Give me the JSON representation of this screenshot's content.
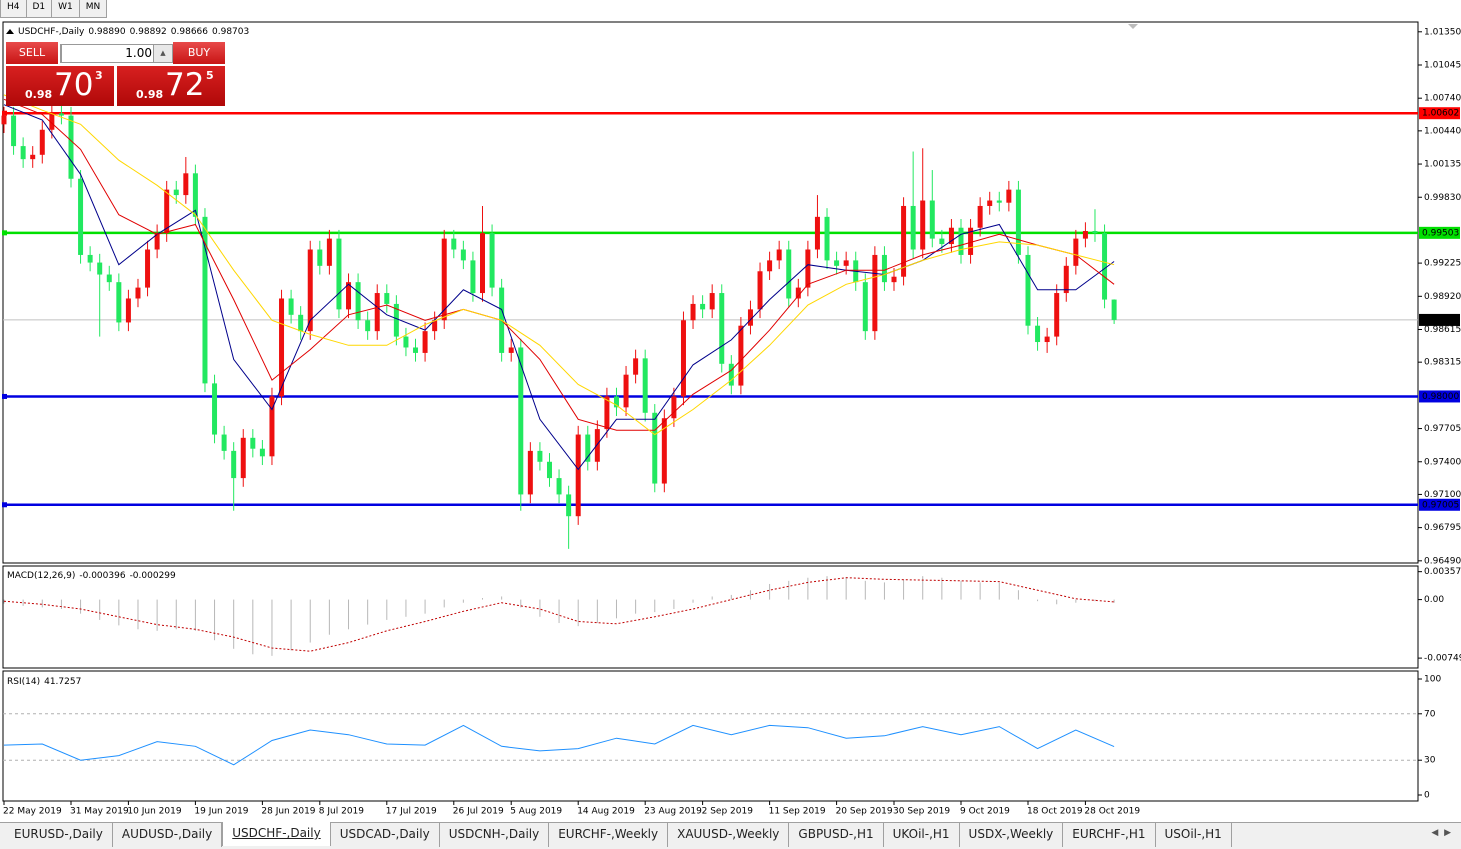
{
  "toolbar": {
    "periods": [
      "H4",
      "D1",
      "W1",
      "MN"
    ]
  },
  "trade_panel": {
    "sell": "SELL",
    "buy": "BUY",
    "lot": "1.00",
    "bid": {
      "big_figure": "0.98",
      "pips": "70",
      "point": "3"
    },
    "ask": {
      "big_figure": "0.98",
      "pips": "72",
      "point": "5"
    }
  },
  "chart_data": [
    {
      "type": "candlestick",
      "title": "USDCHF-,Daily",
      "header_labels": [
        "0.98890",
        "0.98892",
        "0.98666",
        "0.98703"
      ],
      "categories": [
        "22 May 2019",
        null,
        null,
        null,
        null,
        null,
        null,
        "31 May 2019",
        null,
        null,
        null,
        null,
        null,
        "10 Jun 2019",
        null,
        null,
        null,
        null,
        null,
        null,
        "19 Jun 2019",
        null,
        null,
        null,
        null,
        null,
        null,
        "28 Jun 2019",
        null,
        null,
        null,
        null,
        null,
        "8 Jul 2019",
        null,
        null,
        null,
        null,
        null,
        null,
        "17 Jul 2019",
        null,
        null,
        null,
        null,
        null,
        null,
        "26 Jul 2019",
        null,
        null,
        null,
        null,
        null,
        "5 Aug 2019",
        null,
        null,
        null,
        null,
        null,
        null,
        "14 Aug 2019",
        null,
        null,
        null,
        null,
        null,
        null,
        "23 Aug 2019",
        null,
        null,
        null,
        null,
        null,
        "2 Sep 2019",
        null,
        null,
        null,
        null,
        null,
        null,
        "11 Sep 2019",
        null,
        null,
        null,
        null,
        null,
        null,
        "20 Sep 2019",
        null,
        null,
        null,
        null,
        null,
        "30 Sep 2019",
        null,
        null,
        null,
        null,
        null,
        null,
        "9 Oct 2019",
        null,
        null,
        null,
        null,
        null,
        null,
        "18 Oct 2019",
        null,
        null,
        null,
        null,
        null,
        "28 Oct 2019",
        null,
        null,
        null
      ],
      "open": [
        1.005,
        1.0058,
        1.003,
        1.0018,
        1.0022,
        1.0045,
        1.006,
        1.0058,
        1.0,
        0.993,
        0.9923,
        0.9912,
        0.9905,
        0.9868,
        0.989,
        0.99,
        0.9935,
        0.995,
        0.999,
        0.9985,
        1.0005,
        0.9965,
        0.9812,
        0.9765,
        0.975,
        0.9725,
        0.9762,
        0.9752,
        0.9745,
        0.98,
        0.989,
        0.9875,
        0.986,
        0.9935,
        0.992,
        0.9945,
        0.988,
        0.9905,
        0.987,
        0.986,
        0.9895,
        0.9885,
        0.9855,
        0.9845,
        0.984,
        0.986,
        0.987,
        0.9945,
        0.9935,
        0.9925,
        0.9895,
        0.995,
        0.99,
        0.984,
        0.9845,
        0.971,
        0.975,
        0.974,
        0.9725,
        0.971,
        0.969,
        0.9765,
        0.974,
        0.977,
        0.98,
        0.979,
        0.982,
        0.9835,
        0.9785,
        0.972,
        0.978,
        0.98,
        0.987,
        0.9885,
        0.988,
        0.9895,
        0.983,
        0.981,
        0.9865,
        0.988,
        0.9915,
        0.9925,
        0.9935,
        0.989,
        0.99,
        0.9935,
        0.9965,
        0.9925,
        0.992,
        0.9925,
        0.9905,
        0.986,
        0.993,
        0.9905,
        0.991,
        0.9975,
        0.9935,
        0.998,
        0.9945,
        0.994,
        0.9955,
        0.993,
        0.9955,
        0.9975,
        0.998,
        0.9978,
        0.999,
        0.993,
        0.9865,
        0.985,
        0.9855,
        0.9895,
        0.992,
        0.9945,
        0.9952,
        0.995,
        0.9889
      ],
      "high": [
        1.0066,
        1.0066,
        1.0038,
        1.003,
        1.0053,
        1.0068,
        1.0068,
        1.0066,
        1.0008,
        0.9938,
        0.9931,
        0.992,
        0.9913,
        0.9898,
        0.9908,
        0.9943,
        0.9958,
        0.9998,
        0.9998,
        1.002,
        1.0013,
        0.9973,
        0.982,
        0.9773,
        0.9758,
        0.977,
        0.977,
        0.976,
        0.9808,
        0.9898,
        0.9898,
        0.9883,
        0.9943,
        0.9943,
        0.9953,
        0.9953,
        0.9913,
        0.9913,
        0.9878,
        0.9903,
        0.9903,
        0.9893,
        0.9863,
        0.9853,
        0.9868,
        0.9878,
        0.9953,
        0.9953,
        0.9943,
        0.9933,
        0.9975,
        0.9958,
        0.9908,
        0.9853,
        0.9853,
        0.9758,
        0.9758,
        0.9748,
        0.9733,
        0.9718,
        0.9773,
        0.9773,
        0.9778,
        0.9808,
        0.9808,
        0.9828,
        0.9843,
        0.9843,
        0.9793,
        0.9788,
        0.9808,
        0.9878,
        0.9893,
        0.9893,
        0.9903,
        0.9903,
        0.9838,
        0.9873,
        0.9888,
        0.9923,
        0.9933,
        0.9943,
        0.9943,
        0.9908,
        0.9943,
        0.9985,
        0.9973,
        0.9933,
        0.9933,
        0.9933,
        0.9913,
        0.9938,
        0.9938,
        0.9918,
        0.9983,
        1.0025,
        1.0028,
        1.0008,
        0.9953,
        0.9963,
        0.9963,
        0.9963,
        0.9983,
        0.9988,
        0.9988,
        0.9998,
        0.9998,
        0.9938,
        0.9873,
        0.9863,
        0.9903,
        0.9928,
        0.9953,
        0.996,
        0.9972,
        0.9958,
        0.98892
      ],
      "low": [
        1.0042,
        1.0022,
        1.001,
        1.001,
        1.0014,
        1.0037,
        1.005,
        0.9992,
        0.9922,
        0.9915,
        0.9855,
        0.9897,
        0.986,
        0.986,
        0.9882,
        0.9892,
        0.9927,
        0.9942,
        0.9977,
        0.9977,
        0.9957,
        0.9804,
        0.9757,
        0.9742,
        0.9695,
        0.9717,
        0.9744,
        0.9737,
        0.9737,
        0.9792,
        0.9867,
        0.9852,
        0.9852,
        0.9912,
        0.9912,
        0.9872,
        0.9872,
        0.9862,
        0.9852,
        0.9852,
        0.9877,
        0.9847,
        0.9837,
        0.9832,
        0.9832,
        0.9852,
        0.9862,
        0.9927,
        0.9917,
        0.9887,
        0.9887,
        0.9892,
        0.9832,
        0.9832,
        0.9695,
        0.9702,
        0.9732,
        0.9717,
        0.9702,
        0.966,
        0.9682,
        0.9732,
        0.9732,
        0.9762,
        0.9782,
        0.9782,
        0.9812,
        0.9777,
        0.9712,
        0.9712,
        0.9772,
        0.9792,
        0.9862,
        0.9872,
        0.9872,
        0.9822,
        0.9802,
        0.9802,
        0.9857,
        0.9872,
        0.9907,
        0.9917,
        0.9882,
        0.9882,
        0.9892,
        0.9927,
        0.9917,
        0.9912,
        0.9912,
        0.9897,
        0.9852,
        0.9852,
        0.9897,
        0.9897,
        0.9902,
        0.9927,
        0.9927,
        0.9937,
        0.9932,
        0.9932,
        0.9922,
        0.9922,
        0.9947,
        0.9967,
        0.997,
        0.997,
        0.9922,
        0.9857,
        0.9842,
        0.984,
        0.9847,
        0.9887,
        0.9912,
        0.9937,
        0.9942,
        0.9881,
        0.98666
      ],
      "close": [
        1.0058,
        1.003,
        1.0018,
        1.0022,
        1.0045,
        1.006,
        1.0058,
        1.0,
        0.993,
        0.9923,
        0.9912,
        0.9905,
        0.9868,
        0.989,
        0.99,
        0.9935,
        0.995,
        0.999,
        0.9985,
        1.0005,
        0.9965,
        0.9812,
        0.9765,
        0.975,
        0.9725,
        0.9762,
        0.9752,
        0.9745,
        0.98,
        0.989,
        0.9875,
        0.986,
        0.9935,
        0.992,
        0.9945,
        0.988,
        0.9905,
        0.987,
        0.986,
        0.9895,
        0.9885,
        0.9855,
        0.9845,
        0.984,
        0.986,
        0.987,
        0.9945,
        0.9935,
        0.9925,
        0.9895,
        0.995,
        0.99,
        0.984,
        0.9845,
        0.971,
        0.975,
        0.974,
        0.9725,
        0.971,
        0.969,
        0.9765,
        0.974,
        0.977,
        0.98,
        0.979,
        0.982,
        0.9835,
        0.9785,
        0.972,
        0.978,
        0.98,
        0.987,
        0.9885,
        0.988,
        0.9895,
        0.983,
        0.981,
        0.9865,
        0.988,
        0.9915,
        0.9925,
        0.9935,
        0.989,
        0.99,
        0.9935,
        0.9965,
        0.9925,
        0.992,
        0.9925,
        0.9905,
        0.986,
        0.993,
        0.9905,
        0.991,
        0.9975,
        0.9935,
        0.998,
        0.9945,
        0.994,
        0.9955,
        0.993,
        0.9955,
        0.9975,
        0.998,
        0.9978,
        0.999,
        0.993,
        0.9865,
        0.985,
        0.9855,
        0.9895,
        0.992,
        0.9945,
        0.9952,
        0.995,
        0.9889,
        0.98703
      ],
      "up_color": "#ee1010",
      "down_color": "#22e860",
      "overlays": [
        {
          "color": "#00008b",
          "x": [
            0,
            4,
            8,
            12,
            16,
            20,
            24,
            28,
            32,
            36,
            40,
            44,
            48,
            52,
            56,
            60,
            64,
            68,
            72,
            76,
            80,
            84,
            88,
            92,
            96,
            100,
            104,
            108,
            112,
            116
          ],
          "values": [
            1.0068,
            1.0054,
            1.0004,
            0.9921,
            0.9949,
            0.9971,
            0.9834,
            0.9788,
            0.987,
            0.9903,
            0.9875,
            0.9861,
            0.9898,
            0.988,
            0.9779,
            0.9733,
            0.9779,
            0.9779,
            0.9829,
            0.9852,
            0.9889,
            0.9921,
            0.9916,
            0.9912,
            0.9925,
            0.9949,
            0.9958,
            0.9898,
            0.9898,
            0.9924
          ]
        },
        {
          "color": "#e00000",
          "x": [
            0,
            4,
            8,
            12,
            16,
            20,
            24,
            28,
            32,
            36,
            40,
            44,
            48,
            52,
            56,
            60,
            64,
            68,
            72,
            76,
            80,
            84,
            88,
            92,
            96,
            100,
            104,
            108,
            112,
            116
          ],
          "values": [
            1.0073,
            1.0059,
            1.0027,
            0.9967,
            0.9949,
            0.9958,
            0.9889,
            0.9815,
            0.9843,
            0.9875,
            0.9884,
            0.987,
            0.988,
            0.987,
            0.9834,
            0.9779,
            0.9769,
            0.9769,
            0.9802,
            0.9824,
            0.9861,
            0.9903,
            0.9916,
            0.9916,
            0.993,
            0.9939,
            0.9949,
            0.9939,
            0.993,
            0.9903
          ]
        },
        {
          "color": "#ffd700",
          "x": [
            0,
            4,
            8,
            12,
            16,
            20,
            24,
            28,
            32,
            36,
            40,
            44,
            48,
            52,
            56,
            60,
            64,
            68,
            72,
            76,
            80,
            84,
            88,
            92,
            96,
            100,
            104,
            108,
            112,
            116
          ],
          "values": [
            1.0077,
            1.0063,
            1.005,
            1.0017,
            0.9994,
            0.9967,
            0.9916,
            0.987,
            0.9857,
            0.9847,
            0.9847,
            0.9866,
            0.988,
            0.987,
            0.9847,
            0.9811,
            0.9792,
            0.9765,
            0.9788,
            0.9815,
            0.9847,
            0.9884,
            0.9903,
            0.9912,
            0.9925,
            0.9935,
            0.9942,
            0.9939,
            0.993,
            0.9921
          ]
        }
      ],
      "levels": [
        {
          "value": 1.00602,
          "color": "#ff0000"
        },
        {
          "value": 0.99503,
          "color": "#00e000"
        },
        {
          "value": 0.98,
          "label": "0.98000",
          "color": "#0000e0"
        },
        {
          "value": 0.97005,
          "color": "#0000e0"
        }
      ],
      "ylim": [
        0.9647,
        1.0144
      ],
      "yticks": [
        {
          "value": 1.0135,
          "label": "1.01350"
        },
        1.01045,
        {
          "value": 1.0074,
          "label": "1.00740"
        },
        {
          "value": 1.0044,
          "label": "1.00440"
        },
        1.00135,
        {
          "value": 0.9983,
          "label": "0.99830"
        },
        0.99225,
        {
          "value": 0.9892,
          "label": "0.98920"
        },
        0.98615,
        0.98315,
        0.97705,
        {
          "value": 0.974,
          "label": "0.97400"
        },
        {
          "value": 0.971,
          "label": "0.97100"
        },
        0.96795,
        {
          "value": 0.9649,
          "label": "0.96490"
        }
      ]
    },
    {
      "type": "macd",
      "title": "MACD(12,26,9)",
      "hist_x": [
        0,
        2,
        4,
        6,
        8,
        10,
        12,
        14,
        16,
        18,
        20,
        22,
        24,
        26,
        28,
        30,
        32,
        34,
        36,
        38,
        40,
        42,
        44,
        46,
        48,
        50,
        52,
        54,
        56,
        58,
        60,
        62,
        64,
        66,
        68,
        70,
        72,
        74,
        76,
        78,
        80,
        82,
        84,
        86,
        88,
        90,
        92,
        94,
        96,
        98,
        100,
        102,
        104,
        106,
        108,
        110,
        112,
        114,
        116
      ],
      "hist": [
        -0.0005,
        -0.0008,
        -0.001,
        -0.0012,
        -0.0018,
        -0.0026,
        -0.0033,
        -0.0038,
        -0.004,
        -0.0038,
        -0.004,
        -0.0052,
        -0.0063,
        -0.007,
        -0.0072,
        -0.0065,
        -0.0055,
        -0.0045,
        -0.0038,
        -0.0032,
        -0.0026,
        -0.0022,
        -0.0018,
        -0.001,
        -0.0004,
        0.0002,
        0.0004,
        -0.001,
        -0.0022,
        -0.003,
        -0.0034,
        -0.003,
        -0.0024,
        -0.0018,
        -0.0016,
        -0.0012,
        -0.0004,
        0.0004,
        0.0006,
        0.0012,
        0.002,
        0.0024,
        0.0028,
        0.003,
        0.0029,
        0.0024,
        0.0022,
        0.0026,
        0.003,
        0.0028,
        0.0024,
        0.0022,
        0.0022,
        0.0012,
        -0.0002,
        -0.0006,
        -0.0004,
        -0.0002,
        -0.000396
      ],
      "hist_color": "#b8b8b8",
      "signal_x": [
        0,
        4,
        8,
        12,
        16,
        20,
        24,
        28,
        32,
        36,
        40,
        44,
        48,
        52,
        56,
        60,
        64,
        68,
        72,
        76,
        80,
        84,
        88,
        92,
        96,
        100,
        104,
        108,
        112,
        116
      ],
      "signal": [
        -0.0002,
        -0.0006,
        -0.0012,
        -0.0022,
        -0.0032,
        -0.0038,
        -0.0048,
        -0.0062,
        -0.0066,
        -0.0055,
        -0.004,
        -0.0028,
        -0.0015,
        -0.0004,
        -0.0012,
        -0.0028,
        -0.0031,
        -0.0022,
        -0.0012,
        0,
        0.0012,
        0.0022,
        0.0028,
        0.0026,
        0.0025,
        0.0024,
        0.0023,
        0.0012,
        0.0001,
        -0.000299
      ],
      "signal_color": "#c00000",
      "ylim": [
        -0.0085,
        0.0043
      ],
      "yticks": [
        0.003574,
        {
          "value": 0,
          "label": "0.00"
        },
        -0.00749
      ]
    },
    {
      "type": "line",
      "title": "RSI(14)",
      "x": [
        0,
        4,
        8,
        12,
        16,
        20,
        24,
        28,
        32,
        36,
        40,
        44,
        48,
        52,
        56,
        60,
        64,
        68,
        72,
        76,
        80,
        84,
        88,
        92,
        96,
        100,
        104,
        108,
        112,
        116
      ],
      "values": [
        43,
        44,
        30,
        34,
        46,
        42,
        26,
        47,
        56,
        52,
        44,
        43,
        60,
        42,
        38,
        40,
        49,
        44,
        60,
        52,
        60,
        58,
        49,
        51,
        59,
        52,
        59,
        40,
        56,
        41.7257
      ],
      "color": "#1e90ff",
      "levels": [
        70,
        30
      ],
      "ylim": [
        0,
        100
      ],
      "yticks": [
        100,
        70,
        30,
        0
      ]
    }
  ],
  "tabs": [
    "EURUSD-,Daily",
    "AUDUSD-,Daily",
    "USDCHF-,Daily",
    "USDCAD-,Daily",
    "USDCNH-,Daily",
    "EURCHF-,Weekly",
    "XAUUSD-,Weekly",
    "GBPUSD-,H1",
    "UKOil-,H1",
    "USDX-,Weekly",
    "EURCHF-,H1",
    "USOil-,H1"
  ],
  "active_tab": 2
}
